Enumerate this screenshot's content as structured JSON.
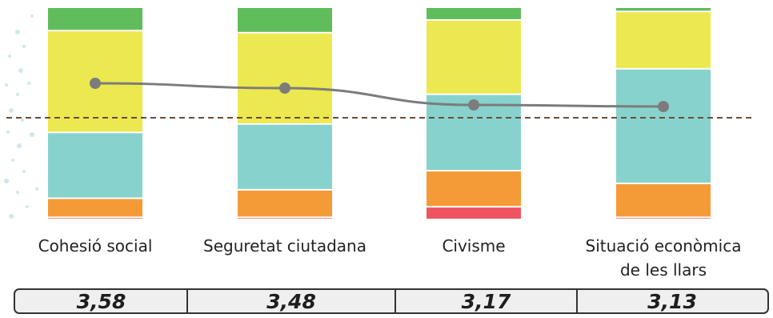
{
  "chart_data": {
    "type": "bar",
    "stacked": true,
    "normalized": true,
    "categories": [
      "Cohesió social",
      "Seguretat ciutadana",
      "Civisme",
      "Situació econòmica de les llars"
    ],
    "category_lines": [
      [
        "Cohesió social"
      ],
      [
        "Seguretat ciutadana"
      ],
      [
        "Civisme"
      ],
      [
        "Situació econòmica",
        "de les llars"
      ]
    ],
    "series": [
      {
        "color": "#ef5461",
        "values": [
          1,
          1,
          6,
          1
        ]
      },
      {
        "color": "#f49b38",
        "values": [
          9,
          13,
          17,
          16
        ]
      },
      {
        "color": "#88d2cd",
        "values": [
          31,
          31,
          36,
          54
        ]
      },
      {
        "color": "#ece84f",
        "values": [
          48,
          43,
          35,
          27
        ]
      },
      {
        "color": "#5fbd5c",
        "values": [
          11,
          12,
          6,
          2
        ]
      }
    ],
    "line": {
      "values": [
        3.58,
        3.48,
        3.17,
        3.13
      ],
      "color": "#7c7c7c",
      "range": [
        1,
        5
      ]
    },
    "reference_line": {
      "value": 3.0,
      "color": "#6b4c3b",
      "style": "dashed"
    },
    "scores": [
      "3,58",
      "3,48",
      "3,17",
      "3,13"
    ]
  },
  "colors": {
    "dots": "#cfe8ea"
  }
}
